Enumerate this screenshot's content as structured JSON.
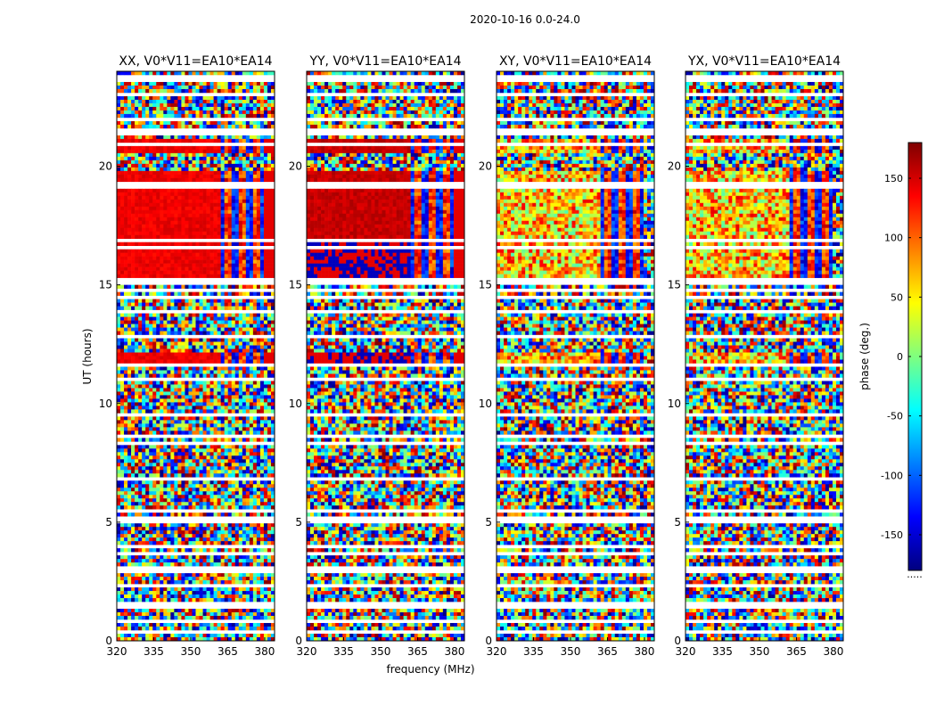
{
  "chart_data": {
    "type": "heatmap",
    "title": "2020-10-16 0.0-24.0",
    "xlabel": "frequency (MHz)",
    "ylabel": "UT (hours)",
    "xlim": [
      320,
      384
    ],
    "ylim": [
      0,
      24
    ],
    "xticks": [
      320,
      335,
      350,
      365,
      380
    ],
    "yticks": [
      0,
      5,
      10,
      15,
      20
    ],
    "panels": [
      {
        "title": "XX, V0*V11=EA10*EA14",
        "pol": "XX"
      },
      {
        "title": "YY, V0*V11=EA10*EA14",
        "pol": "YY"
      },
      {
        "title": "XY, V0*V11=EA10*EA14",
        "pol": "XY"
      },
      {
        "title": "YX, V0*V11=EA10*EA14",
        "pol": "YX"
      }
    ],
    "colorbar": {
      "label": "phase (deg.)",
      "range": [
        -180,
        180
      ],
      "ticks": [
        150,
        100,
        50,
        0,
        -50,
        -100,
        -150
      ],
      "colormap": "jet",
      "footnote": "....."
    }
  }
}
